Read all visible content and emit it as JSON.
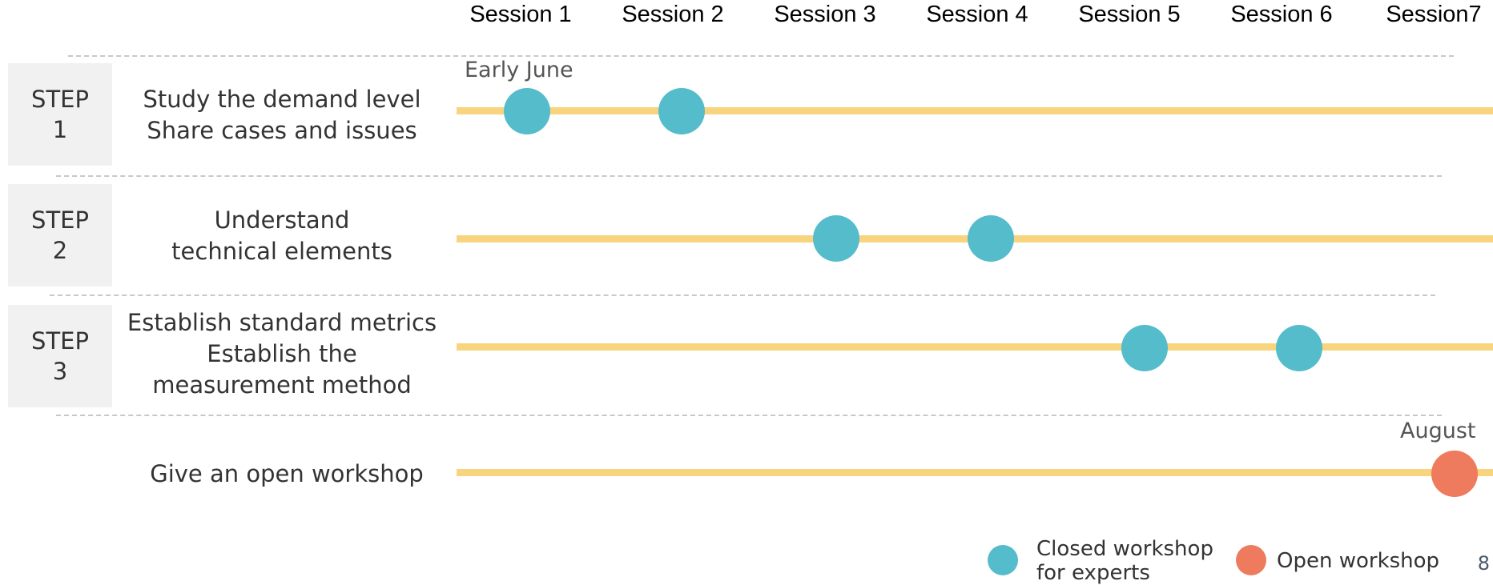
{
  "sessions": [
    "Session 1",
    "Session 2",
    "Session 3",
    "Session 4",
    "Session 5",
    "Session 6",
    "Session7"
  ],
  "steps": [
    {
      "step_label": [
        "STEP",
        "1"
      ],
      "description": [
        "Study the demand level",
        "Share cases and issues"
      ],
      "annotation": "Early June",
      "workshops": [
        {
          "session": 1,
          "kind": "closed"
        },
        {
          "session": 2,
          "kind": "closed"
        }
      ]
    },
    {
      "step_label": [
        "STEP",
        "2"
      ],
      "description": [
        "Understand",
        "technical elements"
      ],
      "workshops": [
        {
          "session": 3,
          "kind": "closed"
        },
        {
          "session": 4,
          "kind": "closed"
        }
      ]
    },
    {
      "step_label": [
        "STEP",
        "3"
      ],
      "description": [
        "Establish standard metrics",
        "Establish the",
        "measurement method"
      ],
      "workshops": [
        {
          "session": 5,
          "kind": "closed"
        },
        {
          "session": 6,
          "kind": "closed"
        }
      ]
    },
    {
      "description": [
        "Give an open workshop"
      ],
      "annotation": "August",
      "workshops": [
        {
          "session": 7,
          "kind": "open"
        }
      ]
    }
  ],
  "legend": {
    "closed": [
      "Closed workshop",
      "for experts"
    ],
    "open": "Open workshop"
  },
  "colors": {
    "closed": "#55bccb",
    "open": "#ee7b5d",
    "timeline": "#f8d47e",
    "step_box": "#f1f1f1"
  },
  "page_number": "8"
}
